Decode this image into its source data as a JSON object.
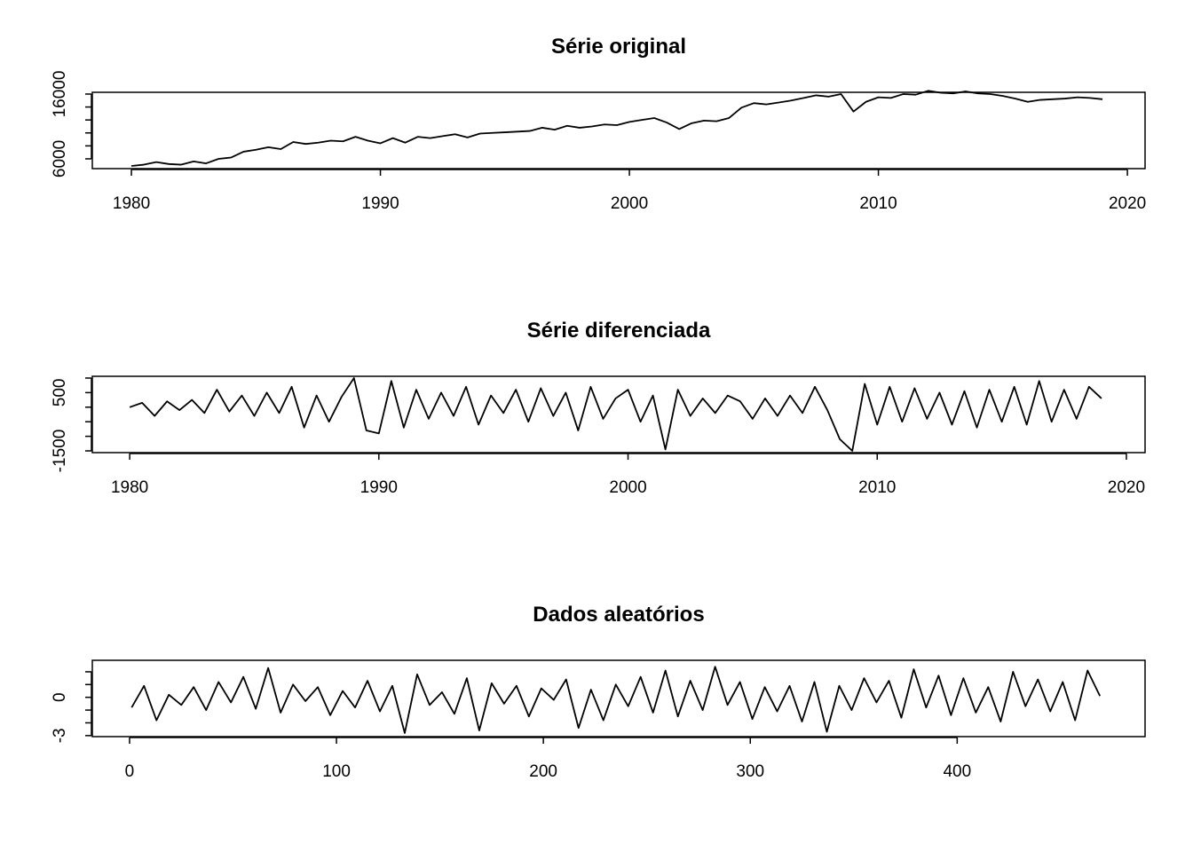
{
  "chart_data": [
    {
      "type": "line",
      "title": "Série original",
      "color": "#000000",
      "x": [
        1980,
        1980.5,
        1981,
        1981.5,
        1982,
        1982.5,
        1983,
        1983.5,
        1984,
        1984.5,
        1985,
        1985.5,
        1986,
        1986.5,
        1987,
        1987.5,
        1988,
        1988.5,
        1989,
        1989.5,
        1990,
        1990.5,
        1991,
        1991.5,
        1992,
        1992.5,
        1993,
        1993.5,
        1994,
        1994.5,
        1995,
        1995.5,
        1996,
        1996.5,
        1997,
        1997.5,
        1998,
        1998.5,
        1999,
        1999.5,
        2000,
        2000.5,
        2001,
        2001.5,
        2002,
        2002.5,
        2003,
        2003.5,
        2004,
        2004.5,
        2005,
        2005.5,
        2006,
        2006.5,
        2007,
        2007.5,
        2008,
        2008.5,
        2009,
        2009.5,
        2010,
        2010.5,
        2011,
        2011.5,
        2012,
        2012.5,
        2013,
        2013.5,
        2014,
        2014.5,
        2015,
        2015.5,
        2016,
        2016.5,
        2017,
        2017.5,
        2018,
        2018.5,
        2019
      ],
      "values": [
        4900,
        5100,
        5500,
        5200,
        5100,
        5600,
        5300,
        6000,
        6200,
        7100,
        7400,
        7800,
        7500,
        8600,
        8300,
        8500,
        8800,
        8700,
        9400,
        8800,
        8400,
        9200,
        8500,
        9400,
        9200,
        9500,
        9800,
        9300,
        9900,
        10000,
        10100,
        10200,
        10300,
        10800,
        10500,
        11100,
        10800,
        11000,
        11300,
        11200,
        11700,
        12000,
        12300,
        11600,
        10600,
        11500,
        11900,
        11800,
        12300,
        13900,
        14600,
        14400,
        14700,
        15000,
        15400,
        15800,
        15600,
        16000,
        13300,
        14800,
        15500,
        15400,
        16000,
        15900,
        16500,
        16200,
        16100,
        16400,
        16100,
        16000,
        15700,
        15300,
        14800,
        15100,
        15200,
        15300,
        15500,
        15400,
        15200
      ],
      "xlim": [
        1978.43,
        2020.71
      ],
      "ylim": [
        4490,
        16270
      ],
      "xticks": [
        1980,
        1990,
        2000,
        2010,
        2020
      ],
      "yticks": [
        6000,
        {
          "value": 8000,
          "label": null
        },
        {
          "value": 10000,
          "label": null
        },
        {
          "value": 12000,
          "label": null
        },
        {
          "value": 14000,
          "label": null
        },
        16000
      ]
    },
    {
      "type": "line",
      "title": "Série diferenciada",
      "color": "#000000",
      "x": [
        1980,
        1980.5,
        1981,
        1981.5,
        1982,
        1982.5,
        1983,
        1983.5,
        1984,
        1984.5,
        1985,
        1985.5,
        1986,
        1986.5,
        1987,
        1987.5,
        1988,
        1988.5,
        1989,
        1989.5,
        1990,
        1990.5,
        1991,
        1991.5,
        1992,
        1992.5,
        1993,
        1993.5,
        1994,
        1994.5,
        1995,
        1995.5,
        1996,
        1996.5,
        1997,
        1997.5,
        1998,
        1998.5,
        1999,
        1999.5,
        2000,
        2000.5,
        2001,
        2001.5,
        2002,
        2002.5,
        2003,
        2003.5,
        2004,
        2004.5,
        2005,
        2005.5,
        2006,
        2006.5,
        2007,
        2007.5,
        2008,
        2008.5,
        2009,
        2009.5,
        2010,
        2010.5,
        2011,
        2011.5,
        2012,
        2012.5,
        2013,
        2013.5,
        2014,
        2014.5,
        2015,
        2015.5,
        2016,
        2016.5,
        2017,
        2017.5,
        2018,
        2018.5,
        2019
      ],
      "values": [
        0,
        150,
        -300,
        200,
        -100,
        250,
        -200,
        600,
        -150,
        400,
        -300,
        500,
        -200,
        700,
        -700,
        400,
        -500,
        350,
        1000,
        -800,
        -900,
        900,
        -700,
        600,
        -400,
        500,
        -300,
        700,
        -600,
        400,
        -200,
        600,
        -500,
        650,
        -300,
        500,
        -800,
        700,
        -400,
        300,
        600,
        -500,
        400,
        -1450,
        600,
        -300,
        300,
        -200,
        400,
        200,
        -400,
        300,
        -300,
        400,
        -200,
        700,
        -100,
        -1100,
        -1500,
        800,
        -600,
        700,
        -500,
        650,
        -400,
        500,
        -600,
        550,
        -700,
        600,
        -500,
        700,
        -600,
        900,
        -500,
        600,
        -400,
        700,
        300
      ],
      "xlim": [
        1978.5,
        2020.75
      ],
      "ylim": [
        -1560,
        1060
      ],
      "xticks": [
        1980,
        1990,
        2000,
        2010,
        2020
      ],
      "yticks": [
        -1500,
        {
          "value": -1000,
          "label": null
        },
        {
          "value": -500,
          "label": null
        },
        {
          "value": 0,
          "label": null
        },
        500,
        {
          "value": 1000,
          "label": null
        }
      ]
    },
    {
      "type": "line",
      "title": "Dados aleatórios",
      "color": "#000000",
      "x": [
        1,
        7,
        13,
        19,
        25,
        31,
        37,
        43,
        49,
        55,
        61,
        67,
        73,
        79,
        85,
        91,
        97,
        103,
        109,
        115,
        121,
        127,
        133,
        139,
        145,
        151,
        157,
        163,
        169,
        175,
        181,
        187,
        193,
        199,
        205,
        211,
        217,
        223,
        229,
        235,
        241,
        247,
        253,
        259,
        265,
        271,
        277,
        283,
        289,
        295,
        301,
        307,
        313,
        319,
        325,
        331,
        337,
        343,
        349,
        355,
        361,
        367,
        373,
        379,
        385,
        391,
        397,
        403,
        409,
        415,
        421,
        427,
        433,
        439,
        445,
        451,
        457,
        463,
        469
      ],
      "values": [
        -0.8,
        0.9,
        -1.8,
        0.2,
        -0.6,
        0.8,
        -1.0,
        1.2,
        -0.4,
        1.6,
        -0.9,
        2.3,
        -1.2,
        1.0,
        -0.3,
        0.8,
        -1.4,
        0.5,
        -0.8,
        1.3,
        -1.1,
        0.9,
        -2.8,
        1.8,
        -0.6,
        0.4,
        -1.3,
        1.5,
        -2.6,
        1.1,
        -0.5,
        0.9,
        -1.5,
        0.7,
        -0.2,
        1.4,
        -2.4,
        0.6,
        -1.8,
        1.0,
        -0.7,
        1.6,
        -1.2,
        2.1,
        -1.5,
        1.3,
        -1.0,
        2.4,
        -0.6,
        1.2,
        -1.7,
        0.8,
        -1.1,
        0.9,
        -1.9,
        1.2,
        -2.7,
        0.9,
        -1.0,
        1.5,
        -0.4,
        1.3,
        -1.6,
        2.2,
        -0.8,
        1.7,
        -1.4,
        1.5,
        -1.2,
        0.8,
        -1.9,
        2.0,
        -0.7,
        1.4,
        -1.1,
        1.2,
        -1.8,
        2.1,
        0.1
      ],
      "xlim": [
        -18.0,
        490.8
      ],
      "ylim": [
        -3.08,
        2.9
      ],
      "xticks": [
        0,
        100,
        200,
        300,
        400
      ],
      "yticks": [
        -3,
        {
          "value": -2,
          "label": null
        },
        {
          "value": -1,
          "label": null
        },
        0,
        {
          "value": 1,
          "label": null
        },
        {
          "value": 2,
          "label": null
        }
      ]
    }
  ]
}
